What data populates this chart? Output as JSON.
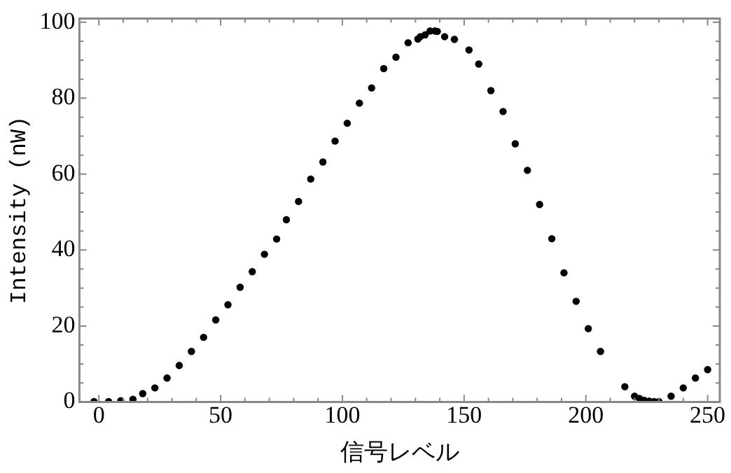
{
  "chart_data": {
    "type": "scatter",
    "xlabel": "信号レベル",
    "ylabel": "Intensity (nW)",
    "x": [
      -2,
      4,
      9,
      14,
      18,
      23,
      28,
      33,
      38,
      43,
      48,
      53,
      58,
      63,
      68,
      73,
      77,
      82,
      87,
      92,
      97,
      102,
      107,
      112,
      117,
      122,
      127,
      131,
      132,
      134,
      136,
      138,
      139,
      142,
      146,
      152,
      156,
      161,
      166,
      171,
      176,
      181,
      186,
      191,
      196,
      201,
      206,
      216,
      220,
      222,
      224,
      226,
      228,
      230,
      235,
      240,
      245,
      250
    ],
    "values": [
      0.1,
      0.1,
      0.3,
      0.7,
      2.2,
      3.7,
      6.3,
      9.6,
      13.3,
      17,
      21.6,
      25.6,
      30.2,
      34.3,
      38.9,
      42.9,
      48,
      52.8,
      58.7,
      63.2,
      68.7,
      73.4,
      78.7,
      82.7,
      87.8,
      90.8,
      94.6,
      95.6,
      96.2,
      96.7,
      97.7,
      97.7,
      97.6,
      96.2,
      95.5,
      92.7,
      89,
      82,
      76.5,
      68,
      61,
      52,
      43,
      34,
      26.5,
      19.3,
      13.3,
      4,
      1.5,
      0.9,
      0.4,
      0.2,
      0.1,
      0.1,
      1.5,
      3.7,
      6.3,
      8.5
    ],
    "color": "#000000",
    "marker": "circle",
    "xlim": [
      -8,
      255
    ],
    "ylim": [
      0,
      101
    ],
    "xticks": [
      0,
      {
        "value": 10,
        "label": null
      },
      {
        "value": 20,
        "label": null
      },
      {
        "value": 30,
        "label": null
      },
      {
        "value": 40,
        "label": null
      },
      50,
      {
        "value": 60,
        "label": null
      },
      {
        "value": 70,
        "label": null
      },
      {
        "value": 80,
        "label": null
      },
      {
        "value": 90,
        "label": null
      },
      100,
      {
        "value": 110,
        "label": null
      },
      {
        "value": 120,
        "label": null
      },
      {
        "value": 130,
        "label": null
      },
      {
        "value": 140,
        "label": null
      },
      150,
      {
        "value": 160,
        "label": null
      },
      {
        "value": 170,
        "label": null
      },
      {
        "value": 180,
        "label": null
      },
      {
        "value": 190,
        "label": null
      },
      200,
      {
        "value": 210,
        "label": null
      },
      {
        "value": 220,
        "label": null
      },
      {
        "value": 230,
        "label": null
      },
      {
        "value": 240,
        "label": null
      },
      250
    ],
    "yticks": [
      0,
      {
        "value": 5,
        "label": null
      },
      {
        "value": 10,
        "label": null
      },
      {
        "value": 15,
        "label": null
      },
      20,
      {
        "value": 25,
        "label": null
      },
      {
        "value": 30,
        "label": null
      },
      {
        "value": 35,
        "label": null
      },
      40,
      {
        "value": 45,
        "label": null
      },
      {
        "value": 50,
        "label": null
      },
      {
        "value": 55,
        "label": null
      },
      60,
      {
        "value": 65,
        "label": null
      },
      {
        "value": 70,
        "label": null
      },
      {
        "value": 75,
        "label": null
      },
      80,
      {
        "value": 85,
        "label": null
      },
      {
        "value": 90,
        "label": null
      },
      {
        "value": 95,
        "label": null
      },
      100
    ],
    "grid": false,
    "legend": false
  }
}
